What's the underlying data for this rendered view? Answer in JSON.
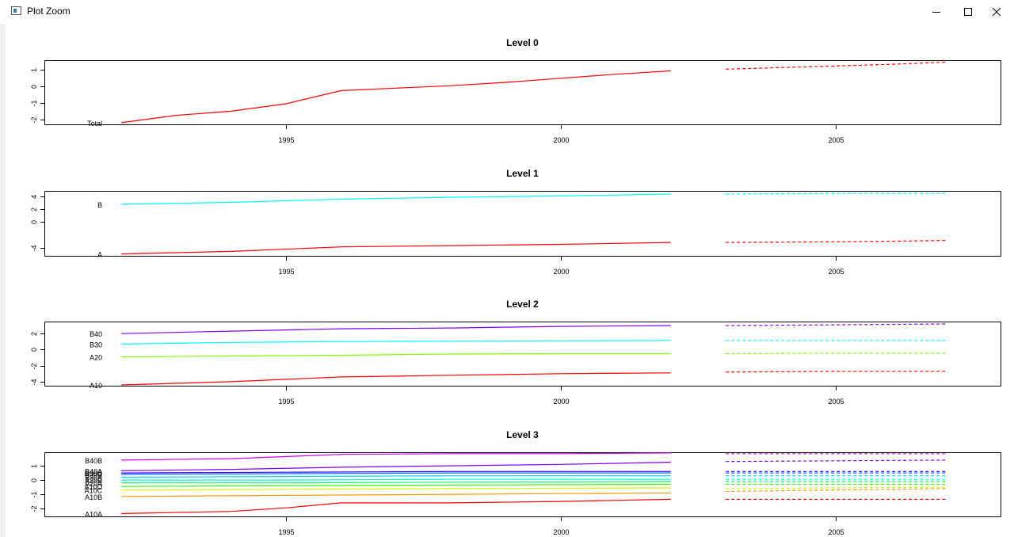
{
  "window": {
    "title": "Plot Zoom",
    "buttons": [
      {
        "name": "minimize",
        "icon": "minimize-icon"
      },
      {
        "name": "maximize",
        "icon": "maximize-icon"
      },
      {
        "name": "close",
        "icon": "close-icon"
      }
    ]
  },
  "chart_data": [
    {
      "type": "line",
      "title": "Level 0",
      "xlabel": "",
      "ylabel": "",
      "xlim": [
        1990.6,
        2008.0
      ],
      "ylim": [
        -2.3,
        1.6
      ],
      "xticks": [
        1995,
        2000,
        2005
      ],
      "yticks": [
        -2,
        -1,
        0,
        1
      ],
      "forecast_style": "dashed",
      "series": [
        {
          "name": "Total",
          "color": "#FF0000",
          "hist_x": [
            1992,
            1993,
            1994,
            1995,
            1996,
            1997,
            1998,
            1999,
            2000,
            2001,
            2002
          ],
          "hist_y": [
            -2.2,
            -1.75,
            -1.5,
            -1.05,
            -0.25,
            -0.1,
            0.05,
            0.25,
            0.5,
            0.75,
            0.95
          ],
          "fc_x": [
            2003,
            2004,
            2005,
            2006,
            2007
          ],
          "fc_y": [
            1.05,
            1.15,
            1.25,
            1.35,
            1.48
          ]
        }
      ]
    },
    {
      "type": "line",
      "title": "Level 1",
      "xlabel": "",
      "ylabel": "",
      "xlim": [
        1990.6,
        2008.0
      ],
      "ylim": [
        -5.3,
        4.9
      ],
      "xticks": [
        1995,
        2000,
        2005
      ],
      "yticks": [
        -4,
        0,
        2,
        4
      ],
      "forecast_style": "dashed",
      "series": [
        {
          "name": "B",
          "color": "#00FFFF",
          "hist_x": [
            1992,
            1994,
            1996,
            1998,
            2000,
            2002
          ],
          "hist_y": [
            2.8,
            3.1,
            3.6,
            3.9,
            4.1,
            4.4
          ],
          "fc_x": [
            2003,
            2005,
            2007
          ],
          "fc_y": [
            4.4,
            4.5,
            4.5
          ]
        },
        {
          "name": "A",
          "color": "#FF0000",
          "hist_x": [
            1992,
            1994,
            1996,
            1998,
            2000,
            2002
          ],
          "hist_y": [
            -5.0,
            -4.6,
            -3.9,
            -3.7,
            -3.5,
            -3.2
          ],
          "fc_x": [
            2003,
            2005,
            2007
          ],
          "fc_y": [
            -3.2,
            -3.1,
            -2.9
          ]
        }
      ]
    },
    {
      "type": "line",
      "title": "Level 2",
      "xlabel": "",
      "ylabel": "",
      "xlim": [
        1990.6,
        2008.0
      ],
      "ylim": [
        -4.5,
        3.5
      ],
      "xticks": [
        1995,
        2000,
        2005
      ],
      "yticks": [
        -4,
        -2,
        0,
        2
      ],
      "forecast_style": "dashed",
      "series": [
        {
          "name": "B40",
          "color": "#8000FF",
          "hist_x": [
            1992,
            1994,
            1996,
            1998,
            2000,
            2002
          ],
          "hist_y": [
            2.0,
            2.3,
            2.6,
            2.7,
            2.9,
            3.0
          ],
          "fc_x": [
            2003,
            2005,
            2007
          ],
          "fc_y": [
            3.0,
            3.1,
            3.2
          ]
        },
        {
          "name": "B30",
          "color": "#00FFFF",
          "hist_x": [
            1992,
            1994,
            1996,
            1998,
            2000,
            2002
          ],
          "hist_y": [
            0.7,
            0.9,
            1.0,
            1.05,
            1.1,
            1.15
          ],
          "fc_x": [
            2003,
            2005,
            2007
          ],
          "fc_y": [
            1.15,
            1.15,
            1.15
          ]
        },
        {
          "name": "A20",
          "color": "#80FF00",
          "hist_x": [
            1992,
            1994,
            1996,
            1998,
            2000,
            2002
          ],
          "hist_y": [
            -0.9,
            -0.8,
            -0.7,
            -0.55,
            -0.5,
            -0.5
          ],
          "fc_x": [
            2003,
            2005,
            2007
          ],
          "fc_y": [
            -0.5,
            -0.45,
            -0.45
          ]
        },
        {
          "name": "A10",
          "color": "#FF0000",
          "hist_x": [
            1992,
            1994,
            1996,
            1998,
            2000,
            2002
          ],
          "hist_y": [
            -4.4,
            -4.0,
            -3.4,
            -3.2,
            -3.0,
            -2.9
          ],
          "fc_x": [
            2003,
            2005,
            2007
          ],
          "fc_y": [
            -2.8,
            -2.7,
            -2.7
          ]
        }
      ]
    },
    {
      "type": "line",
      "title": "Level 3",
      "xlabel": "",
      "ylabel": "",
      "xlim": [
        1990.6,
        2008.0
      ],
      "ylim": [
        -2.55,
        1.95
      ],
      "xticks": [
        1995,
        2000,
        2005
      ],
      "yticks": [
        -2,
        -1,
        0,
        1
      ],
      "forecast_style": "dashed",
      "series": [
        {
          "name": "B40B",
          "color": "#CC00FF",
          "hist_x": [
            1992,
            1994,
            1996,
            1998,
            2000,
            2002
          ],
          "hist_y": [
            1.4,
            1.5,
            1.8,
            1.85,
            1.85,
            1.9
          ],
          "fc_x": [
            2003,
            2005,
            2007
          ],
          "fc_y": [
            1.85,
            1.85,
            1.85
          ]
        },
        {
          "name": "B40A",
          "color": "#8000FF",
          "hist_x": [
            1992,
            1994,
            1996,
            1998,
            2000,
            2002
          ],
          "hist_y": [
            0.65,
            0.75,
            0.9,
            1.0,
            1.1,
            1.25
          ],
          "fc_x": [
            2003,
            2005,
            2007
          ],
          "fc_y": [
            1.3,
            1.35,
            1.4
          ]
        },
        {
          "name": "B30C",
          "color": "#3300FF",
          "hist_x": [
            1992,
            1995,
            1998,
            2002
          ],
          "hist_y": [
            0.5,
            0.55,
            0.6,
            0.6
          ],
          "fc_x": [
            2003,
            2005,
            2007
          ],
          "fc_y": [
            0.6,
            0.6,
            0.6
          ]
        },
        {
          "name": "B30B",
          "color": "#0066FF",
          "hist_x": [
            1992,
            1995,
            1998,
            2002
          ],
          "hist_y": [
            0.4,
            0.45,
            0.5,
            0.5
          ],
          "fc_x": [
            2003,
            2005,
            2007
          ],
          "fc_y": [
            0.5,
            0.5,
            0.5
          ]
        },
        {
          "name": "B30A",
          "color": "#00CCFF",
          "hist_x": [
            1992,
            1995,
            1998,
            2002
          ],
          "hist_y": [
            0.2,
            0.25,
            0.3,
            0.3
          ],
          "fc_x": [
            2003,
            2005,
            2007
          ],
          "fc_y": [
            0.3,
            0.3,
            0.3
          ]
        },
        {
          "name": "A20B",
          "color": "#00FFCC",
          "hist_x": [
            1992,
            1995,
            1998,
            2002
          ],
          "hist_y": [
            0.0,
            0.0,
            0.05,
            0.05
          ],
          "fc_x": [
            2003,
            2005,
            2007
          ],
          "fc_y": [
            0.05,
            0.05,
            0.05
          ]
        },
        {
          "name": "A20A",
          "color": "#00FF66",
          "hist_x": [
            1992,
            1995,
            1998,
            2002
          ],
          "hist_y": [
            -0.2,
            -0.2,
            -0.15,
            -0.1
          ],
          "fc_x": [
            2003,
            2005,
            2007
          ],
          "fc_y": [
            -0.1,
            -0.1,
            -0.1
          ]
        },
        {
          "name": "A10D",
          "color": "#33FF00",
          "hist_x": [
            1992,
            1995,
            1998,
            2002
          ],
          "hist_y": [
            -0.45,
            -0.4,
            -0.35,
            -0.3
          ],
          "fc_x": [
            2003,
            2005,
            2007
          ],
          "fc_y": [
            -0.3,
            -0.3,
            -0.3
          ]
        },
        {
          "name": "A10C",
          "color": "#CCFF00",
          "hist_x": [
            1992,
            1995,
            1998,
            2002
          ],
          "hist_y": [
            -0.7,
            -0.65,
            -0.6,
            -0.55
          ],
          "fc_x": [
            2003,
            2005,
            2007
          ],
          "fc_y": [
            -0.6,
            -0.55,
            -0.5
          ]
        },
        {
          "name": "A10B",
          "color": "#FF9900",
          "hist_x": [
            1992,
            1994,
            1996,
            1998,
            2000,
            2002
          ],
          "hist_y": [
            -1.15,
            -1.1,
            -1.05,
            -1.0,
            -0.95,
            -0.9
          ],
          "fc_x": [
            2003,
            2005,
            2007
          ],
          "fc_y": [
            -0.8,
            -0.7,
            -0.6
          ]
        },
        {
          "name": "A10A",
          "color": "#FF0000",
          "hist_x": [
            1992,
            1994,
            1995,
            1996,
            1998,
            2000,
            2002
          ],
          "hist_y": [
            -2.35,
            -2.2,
            -1.95,
            -1.6,
            -1.6,
            -1.5,
            -1.35
          ],
          "fc_x": [
            2003,
            2005,
            2007
          ],
          "fc_y": [
            -1.35,
            -1.35,
            -1.35
          ]
        }
      ]
    }
  ]
}
